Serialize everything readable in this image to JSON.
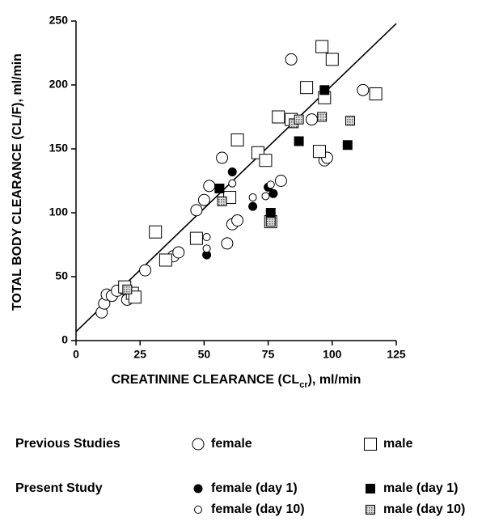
{
  "chart_data": {
    "type": "scatter",
    "x_label": [
      "CREATININE CLEARANCE (CL",
      "cr",
      "), ml/min"
    ],
    "y_label": "TOTAL BODY CLEARANCE (CL/F), ml/min",
    "xlim": [
      0,
      125
    ],
    "xticks": [
      0,
      25,
      50,
      75,
      100,
      125
    ],
    "ylim": [
      0,
      250
    ],
    "yticks": [
      0,
      50,
      100,
      150,
      200,
      250
    ],
    "legend_groups": [
      "Previous Studies",
      "Present Study"
    ],
    "fit_line": {
      "x": [
        0,
        125
      ],
      "y": [
        7,
        248
      ]
    },
    "series": [
      {
        "name": "female",
        "marker": "circle-open",
        "color": "#000",
        "x": [
          10,
          11,
          12,
          14,
          16,
          19,
          20,
          27,
          38,
          40,
          47,
          50,
          52,
          57,
          59,
          61,
          63,
          80,
          84,
          92,
          97,
          98,
          112
        ],
        "values": [
          22,
          29,
          36,
          35,
          39,
          40,
          32,
          55,
          66,
          69,
          102,
          110,
          121,
          143,
          76,
          91,
          94,
          125,
          220,
          173,
          141,
          143,
          196
        ]
      },
      {
        "name": "male",
        "marker": "square-open",
        "color": "#000",
        "x": [
          19,
          22,
          23,
          31,
          35,
          47,
          60,
          63,
          71,
          74,
          79,
          90,
          96,
          100,
          97,
          117,
          95,
          76,
          84
        ],
        "values": [
          42,
          37,
          34,
          85,
          63,
          80,
          112,
          157,
          147,
          141,
          175,
          198,
          230,
          220,
          190,
          193,
          148,
          93,
          173
        ]
      },
      {
        "name": "female (day 1)",
        "marker": "circle-filled",
        "color": "#000",
        "x": [
          51,
          61,
          69,
          75,
          77
        ],
        "values": [
          67,
          132,
          105,
          120,
          115
        ]
      },
      {
        "name": "male (day 1)",
        "marker": "square-filled",
        "color": "#000",
        "x": [
          56,
          76,
          87,
          97,
          106
        ],
        "values": [
          119,
          100,
          156,
          196,
          153
        ]
      },
      {
        "name": "female (day 10)",
        "marker": "circle-open-small",
        "color": "#000",
        "x": [
          51,
          51,
          61,
          69,
          74,
          76
        ],
        "values": [
          81,
          72,
          123,
          112,
          113,
          122
        ]
      },
      {
        "name": "male (day 10)",
        "marker": "square-shaded",
        "color": "#000",
        "x": [
          20,
          57,
          76,
          85,
          96,
          107,
          87
        ],
        "values": [
          40,
          109,
          93,
          170,
          175,
          172,
          173
        ]
      }
    ]
  }
}
